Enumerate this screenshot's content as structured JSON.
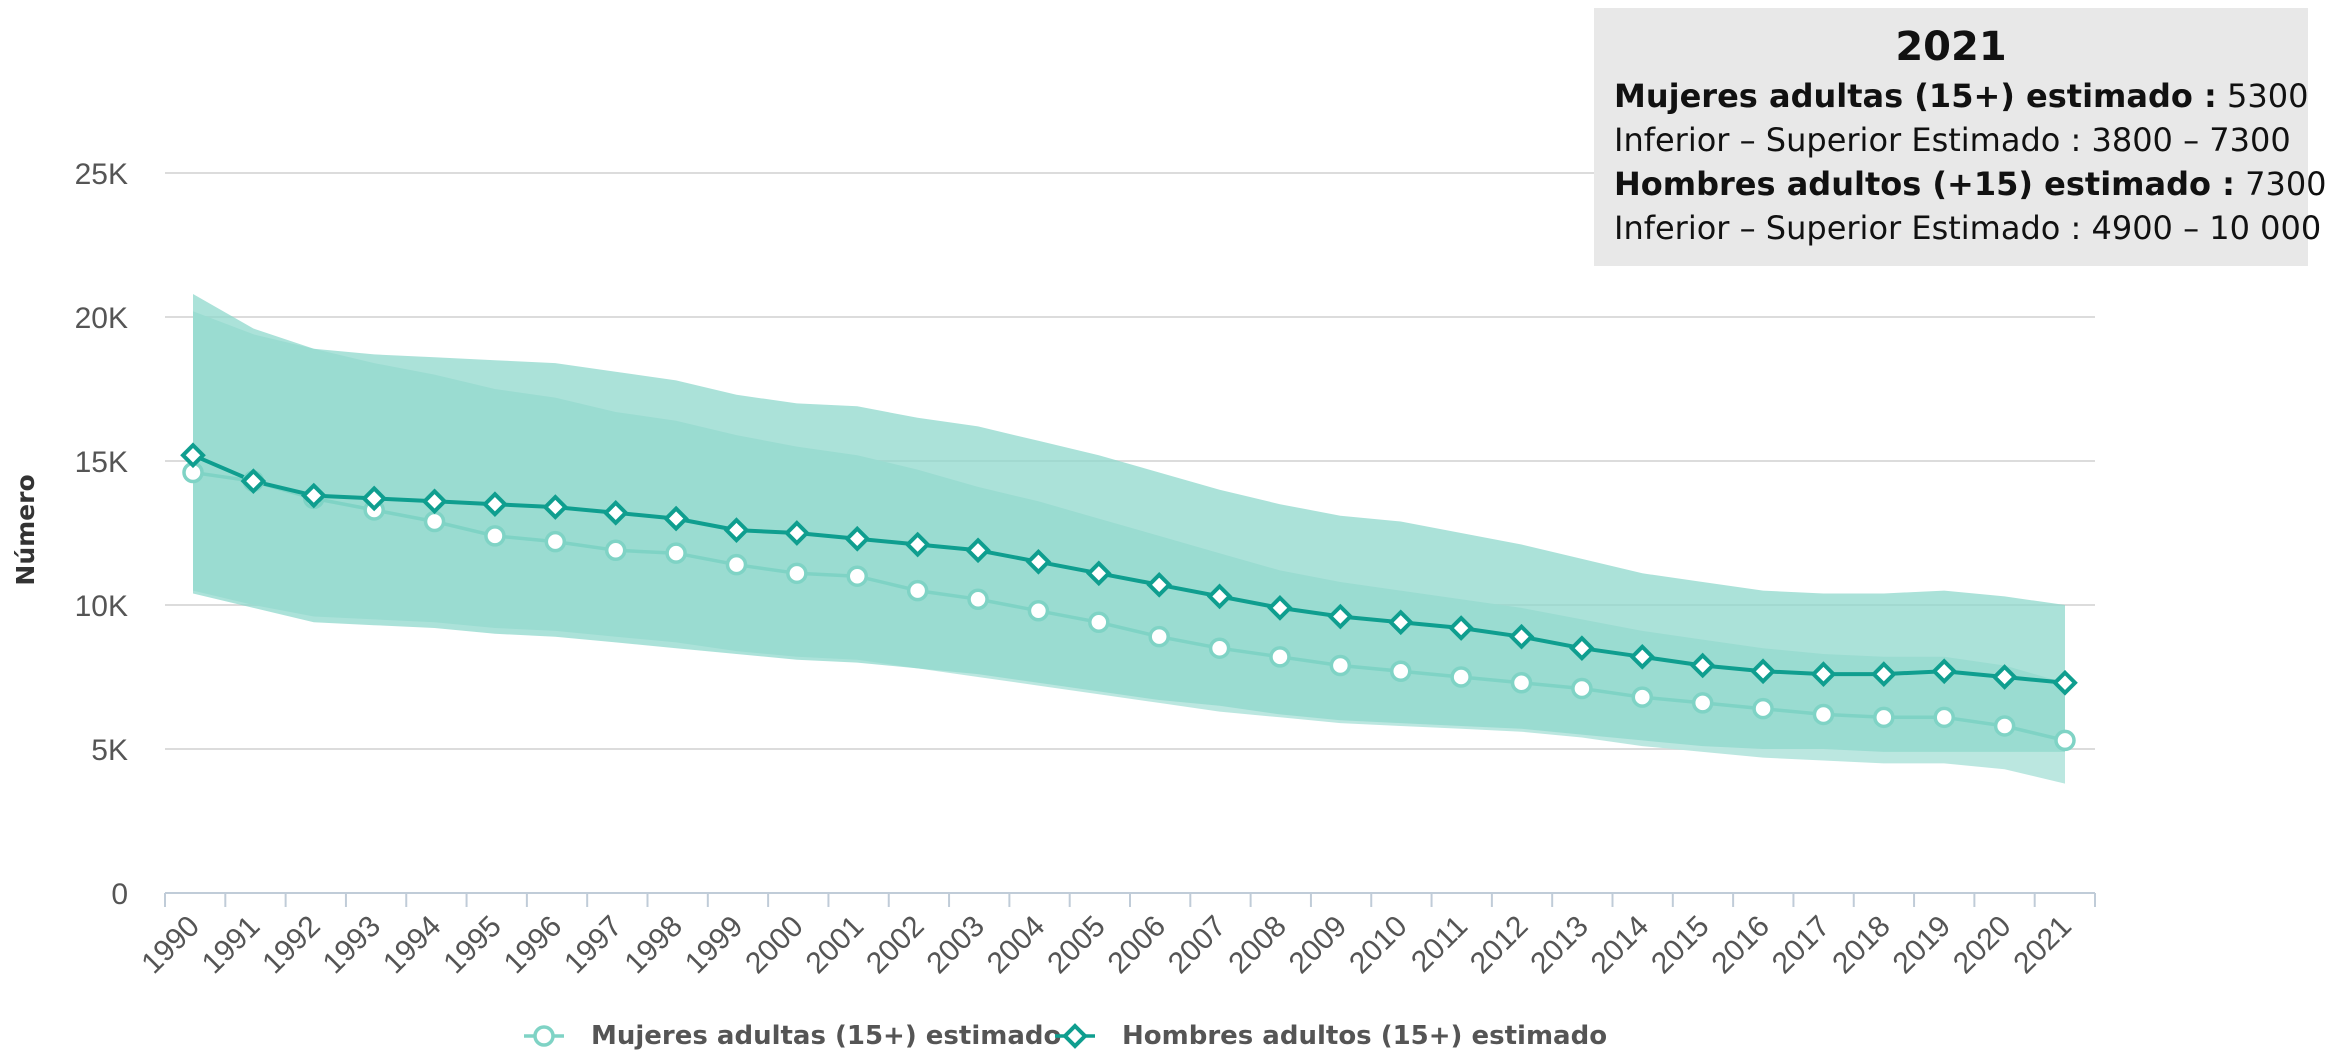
{
  "chart_data": {
    "type": "line",
    "title": "",
    "xlabel": "",
    "ylabel": "Número",
    "ylim": [
      0,
      25000
    ],
    "yticks": [
      0,
      5000,
      10000,
      15000,
      20000,
      25000
    ],
    "ytick_labels": [
      "0",
      "5K",
      "10K",
      "15K",
      "20K",
      "25K"
    ],
    "grid": "horizontal",
    "legend": "bottom",
    "x": [
      "1990",
      "1991",
      "1992",
      "1993",
      "1994",
      "1995",
      "1996",
      "1997",
      "1998",
      "1999",
      "2000",
      "2001",
      "2002",
      "2003",
      "2004",
      "2005",
      "2006",
      "2007",
      "2008",
      "2009",
      "2010",
      "2011",
      "2012",
      "2013",
      "2014",
      "2015",
      "2016",
      "2017",
      "2018",
      "2019",
      "2020",
      "2021"
    ],
    "series": [
      {
        "name": "Mujeres adultas (15+) estimado",
        "marker": "circle",
        "color": "#7fd3c5",
        "band_color": "#b7e6de",
        "values": [
          14600,
          14300,
          13700,
          13300,
          12900,
          12400,
          12200,
          11900,
          11800,
          11400,
          11100,
          11000,
          10500,
          10200,
          9800,
          9400,
          8900,
          8500,
          8200,
          7900,
          7700,
          7500,
          7300,
          7100,
          6800,
          6600,
          6400,
          6200,
          6100,
          6100,
          5800,
          5300
        ],
        "lower": [
          10500,
          10000,
          9600,
          9500,
          9400,
          9200,
          9100,
          8900,
          8700,
          8400,
          8200,
          8100,
          7800,
          7500,
          7200,
          6900,
          6600,
          6300,
          6100,
          5900,
          5800,
          5700,
          5600,
          5400,
          5100,
          4900,
          4700,
          4600,
          4500,
          4500,
          4300,
          3800
        ],
        "upper": [
          20200,
          19400,
          18900,
          18400,
          18000,
          17500,
          17200,
          16700,
          16400,
          15900,
          15500,
          15200,
          14700,
          14100,
          13600,
          13000,
          12400,
          11800,
          11200,
          10800,
          10500,
          10200,
          9900,
          9500,
          9100,
          8800,
          8500,
          8300,
          8200,
          8200,
          7900,
          7300
        ]
      },
      {
        "name": "Hombres adultos (15+) estimado",
        "marker": "diamond",
        "color": "#0f9e8f",
        "band_color": "#8fd8cc",
        "values": [
          15200,
          14300,
          13800,
          13700,
          13600,
          13500,
          13400,
          13200,
          13000,
          12600,
          12500,
          12300,
          12100,
          11900,
          11500,
          11100,
          10700,
          10300,
          9900,
          9600,
          9400,
          9200,
          8900,
          8500,
          8200,
          7900,
          7700,
          7600,
          7600,
          7700,
          7500,
          7300
        ],
        "lower": [
          10400,
          9900,
          9400,
          9300,
          9200,
          9000,
          8900,
          8700,
          8500,
          8300,
          8100,
          8000,
          7800,
          7600,
          7300,
          7000,
          6700,
          6500,
          6200,
          6000,
          5900,
          5800,
          5700,
          5500,
          5300,
          5100,
          5000,
          5000,
          4900,
          4900,
          4900,
          4900
        ],
        "upper": [
          20800,
          19600,
          18900,
          18700,
          18600,
          18500,
          18400,
          18100,
          17800,
          17300,
          17000,
          16900,
          16500,
          16200,
          15700,
          15200,
          14600,
          14000,
          13500,
          13100,
          12900,
          12500,
          12100,
          11600,
          11100,
          10800,
          10500,
          10400,
          10400,
          10500,
          10300,
          10000
        ]
      }
    ]
  },
  "tooltip": {
    "year": "2021",
    "women_label": "Mujeres adultas (15+) estimado :",
    "women_value": "5300",
    "range_label_1": "Inferior – Superior Estimado :",
    "women_range": "3800 – 7300",
    "men_label": "Hombres adultos (+15) estimado :",
    "men_value": "7300",
    "range_label_2": "Inferior – Superior Estimado :",
    "men_range": "4900 – 10 000"
  }
}
